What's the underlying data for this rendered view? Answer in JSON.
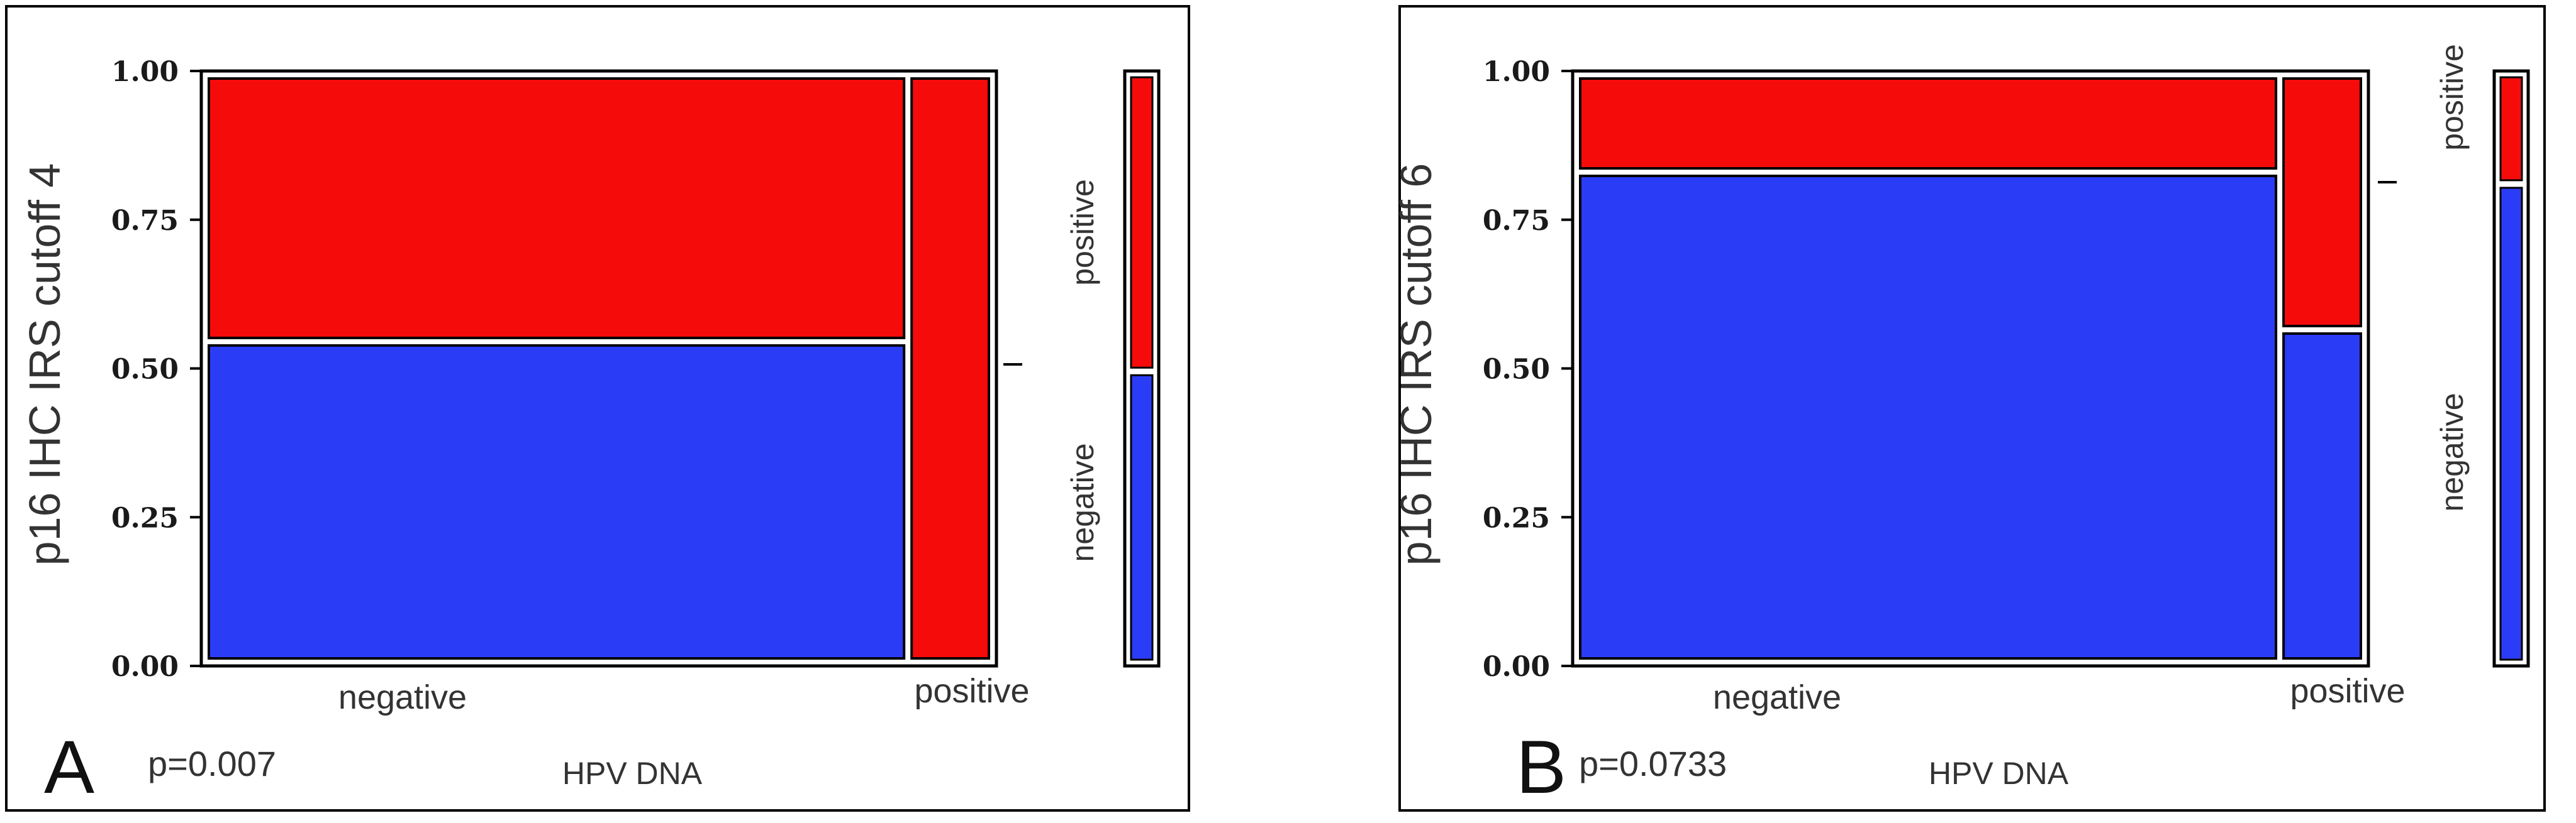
{
  "colors": {
    "negative": "#2b3cf7",
    "positive": "#f60b0b",
    "frame": "#000000",
    "tick_text": "#1a1a1a",
    "label_text": "#333333"
  },
  "chart_data": [
    {
      "type": "mosaic",
      "panel_letter": "A",
      "ylabel": "p16 IHC IRS cutoff 4",
      "xlabel": "HPV DNA",
      "p_value": "p=0.007",
      "ylim": [
        0,
        1
      ],
      "yticks": [
        "0.00",
        "0.25",
        "0.50",
        "0.75",
        "1.00"
      ],
      "categories": [
        "negative",
        "positive"
      ],
      "column_widths": [
        0.9,
        0.1
      ],
      "series": [
        {
          "name": "negative",
          "values": [
            0.545,
            0.0
          ]
        },
        {
          "name": "positive",
          "values": [
            0.455,
            1.0
          ]
        }
      ],
      "marginal": {
        "labels": [
          "positive",
          "negative"
        ],
        "values": [
          0.505,
          0.495
        ]
      }
    },
    {
      "type": "mosaic",
      "panel_letter": "B",
      "ylabel": "p16 IHC IRS cutoff 6",
      "xlabel": "HPV DNA",
      "p_value": "p=0.0733",
      "ylim": [
        0,
        1
      ],
      "yticks": [
        "0.00",
        "0.25",
        "0.50",
        "0.75",
        "1.00"
      ],
      "categories": [
        "negative",
        "positive"
      ],
      "column_widths": [
        0.9,
        0.1
      ],
      "series": [
        {
          "name": "negative",
          "values": [
            0.83,
            0.565
          ]
        },
        {
          "name": "positive",
          "values": [
            0.17,
            0.435
          ]
        }
      ],
      "marginal": {
        "labels": [
          "positive",
          "negative"
        ],
        "values": [
          0.19,
          0.81
        ]
      }
    }
  ]
}
